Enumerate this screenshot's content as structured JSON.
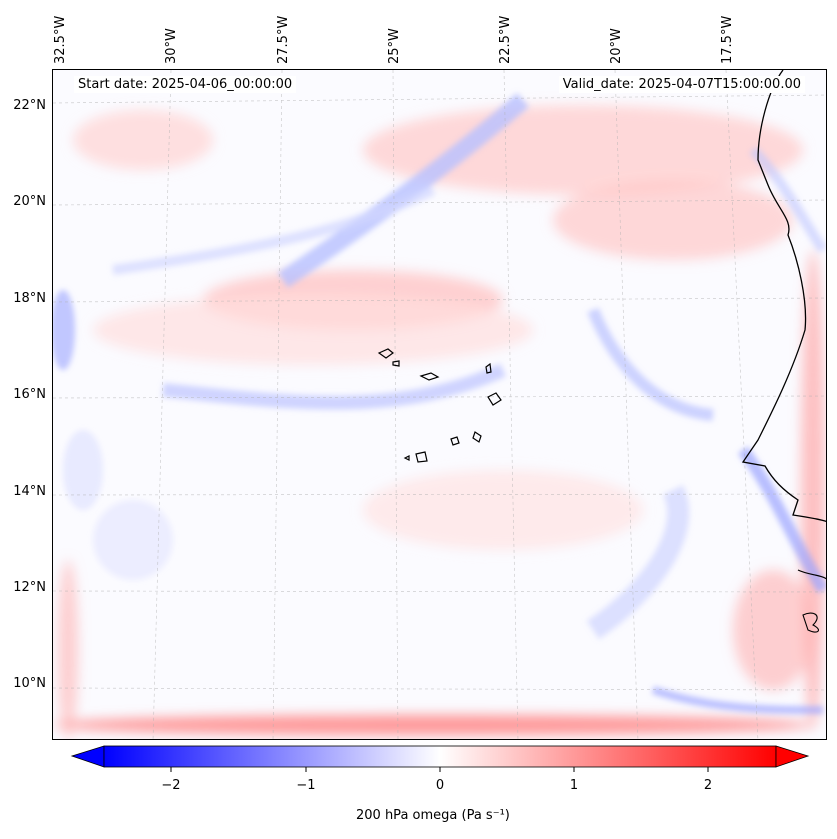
{
  "map": {
    "start_date": "Start date: 2025-04-06_00:00:00",
    "valid_date": "Valid_date: 2025-04-07T15:00:00.00",
    "lon_labels": [
      "32.5°W",
      "30°W",
      "27.5°W",
      "25°W",
      "22.5°W",
      "20°W",
      "17.5°W"
    ],
    "lat_labels": [
      "22°N",
      "20°N",
      "18°N",
      "16°N",
      "14°N",
      "12°N",
      "10°N"
    ]
  },
  "colorbar": {
    "label": "200 hPa omega (Pa s⁻¹)",
    "ticks": [
      "−2",
      "−1",
      "0",
      "1",
      "2"
    ],
    "min": -2.5,
    "max": 2.5,
    "colors": {
      "negative": "#0000ff",
      "zero": "#ffffff",
      "positive": "#ff0000"
    }
  }
}
